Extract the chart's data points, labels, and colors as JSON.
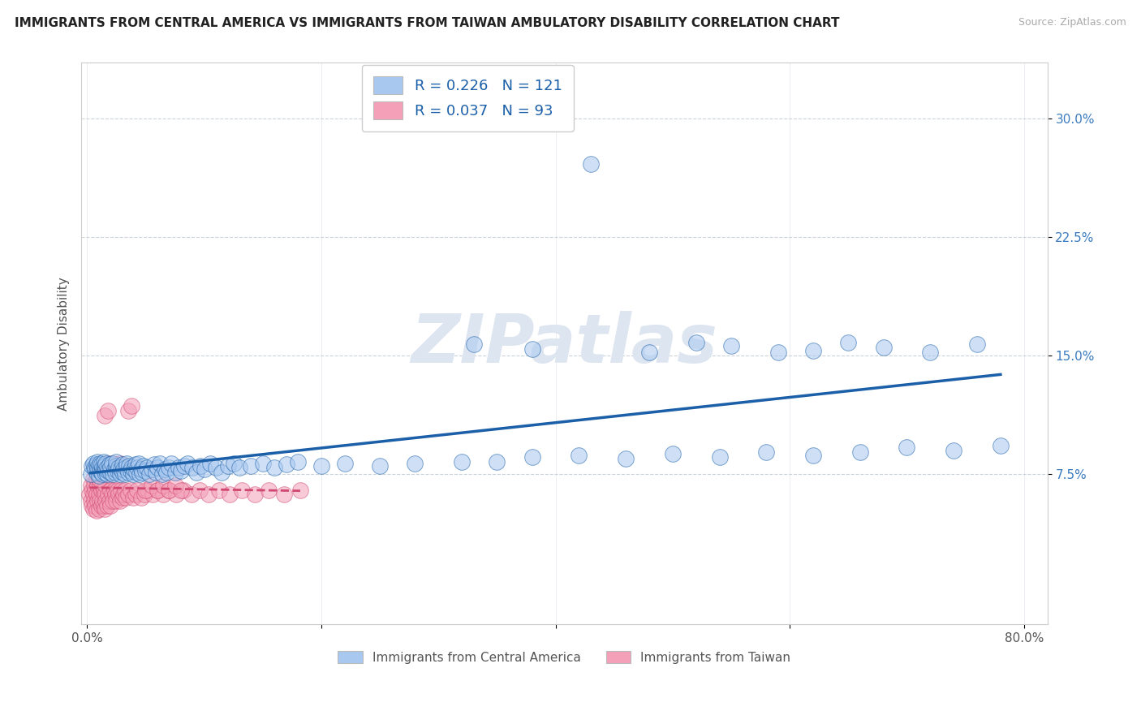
{
  "title": "IMMIGRANTS FROM CENTRAL AMERICA VS IMMIGRANTS FROM TAIWAN AMBULATORY DISABILITY CORRELATION CHART",
  "source": "Source: ZipAtlas.com",
  "ylabel": "Ambulatory Disability",
  "legend_label_blue": "Immigrants from Central America",
  "legend_label_pink": "Immigrants from Taiwan",
  "R_blue": 0.226,
  "N_blue": 121,
  "R_pink": 0.037,
  "N_pink": 93,
  "xlim": [
    -0.005,
    0.82
  ],
  "ylim": [
    -0.02,
    0.335
  ],
  "xtick_positions": [
    0.0,
    0.2,
    0.4,
    0.6,
    0.8
  ],
  "ytick_positions": [
    0.075,
    0.15,
    0.225,
    0.3
  ],
  "yticklabels": [
    "7.5%",
    "15.0%",
    "22.5%",
    "30.0%"
  ],
  "color_blue": "#a8c8f0",
  "color_pink": "#f4a0b8",
  "trendline_blue": "#1a5fa8",
  "trendline_pink": "#d04870",
  "background_color": "#ffffff",
  "watermark_color": "#dde5f0",
  "grid_color": "#c5ced8",
  "blue_x": [
    0.003,
    0.004,
    0.005,
    0.006,
    0.007,
    0.008,
    0.008,
    0.009,
    0.009,
    0.01,
    0.01,
    0.011,
    0.011,
    0.012,
    0.012,
    0.013,
    0.013,
    0.014,
    0.014,
    0.015,
    0.015,
    0.016,
    0.016,
    0.017,
    0.017,
    0.018,
    0.019,
    0.02,
    0.02,
    0.021,
    0.022,
    0.023,
    0.024,
    0.025,
    0.025,
    0.026,
    0.027,
    0.028,
    0.029,
    0.03,
    0.03,
    0.031,
    0.032,
    0.033,
    0.034,
    0.035,
    0.036,
    0.037,
    0.038,
    0.039,
    0.04,
    0.041,
    0.042,
    0.043,
    0.044,
    0.045,
    0.046,
    0.047,
    0.048,
    0.05,
    0.051,
    0.053,
    0.055,
    0.057,
    0.059,
    0.06,
    0.062,
    0.064,
    0.066,
    0.068,
    0.07,
    0.072,
    0.075,
    0.078,
    0.08,
    0.083,
    0.086,
    0.09,
    0.093,
    0.097,
    0.1,
    0.105,
    0.11,
    0.115,
    0.12,
    0.125,
    0.13,
    0.14,
    0.15,
    0.16,
    0.17,
    0.18,
    0.2,
    0.22,
    0.25,
    0.28,
    0.32,
    0.35,
    0.38,
    0.42,
    0.46,
    0.5,
    0.54,
    0.58,
    0.62,
    0.66,
    0.7,
    0.74,
    0.78,
    0.33,
    0.38,
    0.48,
    0.52,
    0.55,
    0.59,
    0.62,
    0.65,
    0.68,
    0.72,
    0.76,
    0.43
  ],
  "blue_y": [
    0.075,
    0.08,
    0.082,
    0.079,
    0.078,
    0.081,
    0.076,
    0.079,
    0.083,
    0.074,
    0.08,
    0.077,
    0.082,
    0.076,
    0.081,
    0.079,
    0.075,
    0.078,
    0.083,
    0.076,
    0.08,
    0.078,
    0.082,
    0.075,
    0.079,
    0.077,
    0.081,
    0.076,
    0.079,
    0.082,
    0.075,
    0.078,
    0.076,
    0.08,
    0.083,
    0.077,
    0.079,
    0.075,
    0.078,
    0.076,
    0.081,
    0.078,
    0.075,
    0.079,
    0.082,
    0.076,
    0.08,
    0.077,
    0.079,
    0.075,
    0.078,
    0.081,
    0.076,
    0.079,
    0.082,
    0.075,
    0.078,
    0.076,
    0.08,
    0.077,
    0.079,
    0.075,
    0.078,
    0.081,
    0.076,
    0.079,
    0.082,
    0.075,
    0.078,
    0.076,
    0.079,
    0.082,
    0.076,
    0.079,
    0.077,
    0.08,
    0.082,
    0.079,
    0.076,
    0.08,
    0.078,
    0.082,
    0.079,
    0.076,
    0.08,
    0.082,
    0.079,
    0.08,
    0.082,
    0.079,
    0.081,
    0.083,
    0.08,
    0.082,
    0.08,
    0.082,
    0.083,
    0.083,
    0.086,
    0.087,
    0.085,
    0.088,
    0.086,
    0.089,
    0.087,
    0.089,
    0.092,
    0.09,
    0.093,
    0.157,
    0.154,
    0.152,
    0.158,
    0.156,
    0.152,
    0.153,
    0.158,
    0.155,
    0.152,
    0.157,
    0.271
  ],
  "pink_x": [
    0.002,
    0.003,
    0.003,
    0.004,
    0.004,
    0.005,
    0.005,
    0.005,
    0.006,
    0.006,
    0.007,
    0.007,
    0.008,
    0.008,
    0.008,
    0.009,
    0.009,
    0.01,
    0.01,
    0.01,
    0.011,
    0.011,
    0.012,
    0.012,
    0.013,
    0.013,
    0.014,
    0.014,
    0.015,
    0.015,
    0.016,
    0.016,
    0.017,
    0.018,
    0.019,
    0.02,
    0.02,
    0.021,
    0.022,
    0.023,
    0.024,
    0.025,
    0.026,
    0.027,
    0.028,
    0.029,
    0.03,
    0.031,
    0.032,
    0.033,
    0.035,
    0.037,
    0.039,
    0.041,
    0.043,
    0.046,
    0.049,
    0.052,
    0.056,
    0.06,
    0.065,
    0.07,
    0.076,
    0.082,
    0.089,
    0.096,
    0.104,
    0.113,
    0.122,
    0.132,
    0.143,
    0.155,
    0.168,
    0.182,
    0.01,
    0.012,
    0.015,
    0.018,
    0.02,
    0.022,
    0.025,
    0.028,
    0.015,
    0.018,
    0.05,
    0.055,
    0.06,
    0.065,
    0.07,
    0.075,
    0.08,
    0.035,
    0.038
  ],
  "pink_y": [
    0.062,
    0.058,
    0.068,
    0.055,
    0.065,
    0.053,
    0.062,
    0.072,
    0.058,
    0.068,
    0.055,
    0.065,
    0.052,
    0.062,
    0.072,
    0.058,
    0.068,
    0.053,
    0.062,
    0.072,
    0.058,
    0.068,
    0.055,
    0.065,
    0.058,
    0.068,
    0.055,
    0.065,
    0.053,
    0.062,
    0.058,
    0.068,
    0.055,
    0.062,
    0.058,
    0.055,
    0.065,
    0.062,
    0.058,
    0.065,
    0.062,
    0.058,
    0.065,
    0.062,
    0.058,
    0.065,
    0.06,
    0.062,
    0.065,
    0.06,
    0.062,
    0.065,
    0.06,
    0.062,
    0.065,
    0.06,
    0.062,
    0.065,
    0.062,
    0.065,
    0.062,
    0.065,
    0.062,
    0.065,
    0.062,
    0.065,
    0.062,
    0.065,
    0.062,
    0.065,
    0.062,
    0.065,
    0.062,
    0.065,
    0.072,
    0.078,
    0.08,
    0.082,
    0.079,
    0.082,
    0.08,
    0.082,
    0.112,
    0.115,
    0.065,
    0.068,
    0.065,
    0.068,
    0.065,
    0.068,
    0.065,
    0.115,
    0.118
  ]
}
